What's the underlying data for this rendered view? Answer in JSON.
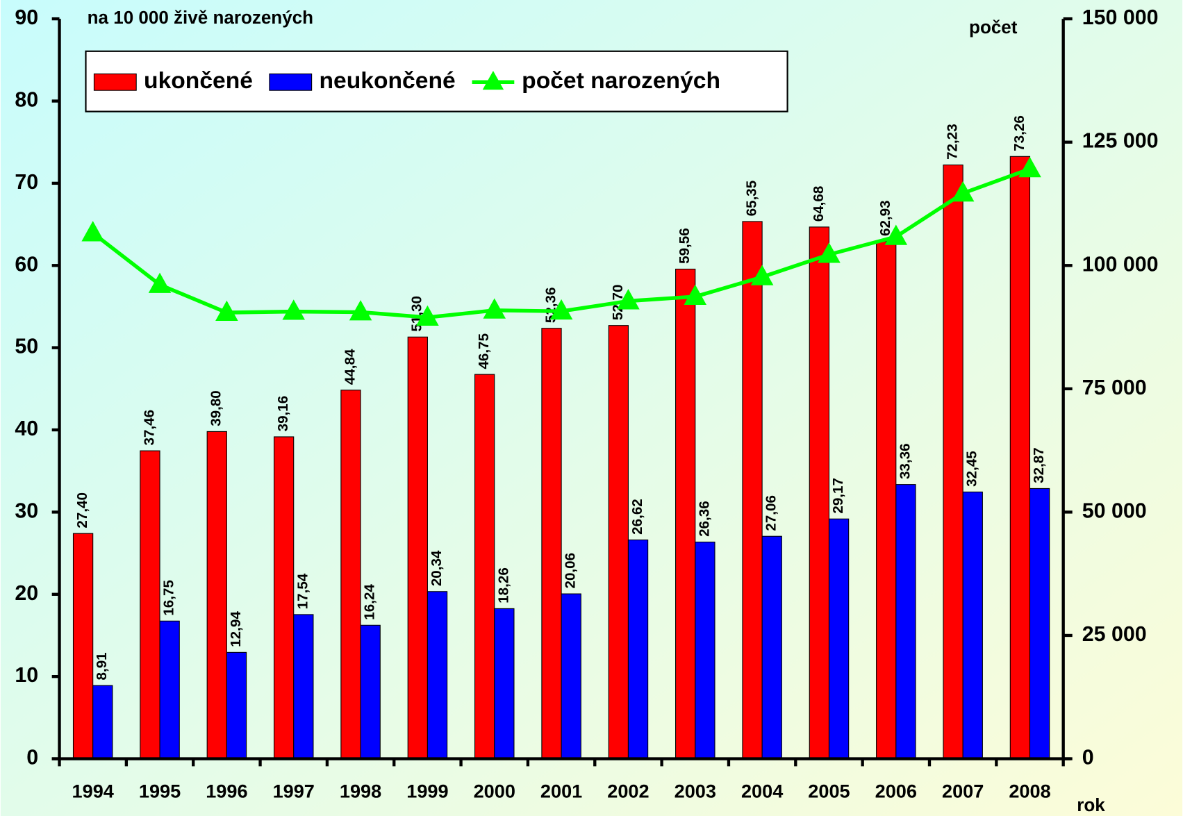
{
  "chart_data": {
    "type": "bar",
    "y_axis_label": "na 10 000 živě narozených",
    "y2_axis_label": "počet",
    "x_axis_label": "rok",
    "categories": [
      "1994",
      "1995",
      "1996",
      "1997",
      "1998",
      "1999",
      "2000",
      "2001",
      "2002",
      "2003",
      "2004",
      "2005",
      "2006",
      "2007",
      "2008"
    ],
    "series": [
      {
        "name": "ukončené",
        "type": "bar",
        "color": "#ff0000",
        "values": [
          27.4,
          37.46,
          39.8,
          39.16,
          44.84,
          51.3,
          46.75,
          52.36,
          52.7,
          59.56,
          65.35,
          64.68,
          62.93,
          72.23,
          73.26
        ],
        "value_labels": [
          "27,40",
          "37,46",
          "39,80",
          "39,16",
          "44,84",
          "51,30",
          "46,75",
          "52,36",
          "52,70",
          "59,56",
          "65,35",
          "64,68",
          "62,93",
          "72,23",
          "73,26"
        ]
      },
      {
        "name": "neukončené",
        "type": "bar",
        "color": "#0000ff",
        "values": [
          8.91,
          16.75,
          12.94,
          17.54,
          16.24,
          20.34,
          18.26,
          20.06,
          26.62,
          26.36,
          27.06,
          29.17,
          33.36,
          32.45,
          32.87
        ],
        "value_labels": [
          "8,91",
          "16,75",
          "12,94",
          "17,54",
          "16,24",
          "20,34",
          "18,26",
          "20,06",
          "26,62",
          "26,36",
          "27,06",
          "29,17",
          "33,36",
          "32,45",
          "32,87"
        ]
      },
      {
        "name": "počet narozených",
        "type": "line",
        "axis": "y2",
        "color": "#00ff00",
        "values": [
          106579,
          96097,
          90446,
          90657,
          90535,
          89471,
          90910,
          90715,
          92786,
          93685,
          97664,
          102211,
          105831,
          114632,
          119570
        ]
      }
    ],
    "ylim": [
      0,
      90
    ],
    "yticks": [
      0,
      10,
      20,
      30,
      40,
      50,
      60,
      70,
      80,
      90
    ],
    "y2lim": [
      0,
      150000
    ],
    "y2ticks": [
      0,
      {
        "value": 25000,
        "label": "25 000"
      },
      {
        "value": 50000,
        "label": "50 000"
      },
      {
        "value": 75000,
        "label": "75 000"
      },
      {
        "value": 100000,
        "label": "100 000"
      },
      {
        "value": 125000,
        "label": "125 000"
      },
      {
        "value": 150000,
        "label": "150 000"
      }
    ]
  }
}
